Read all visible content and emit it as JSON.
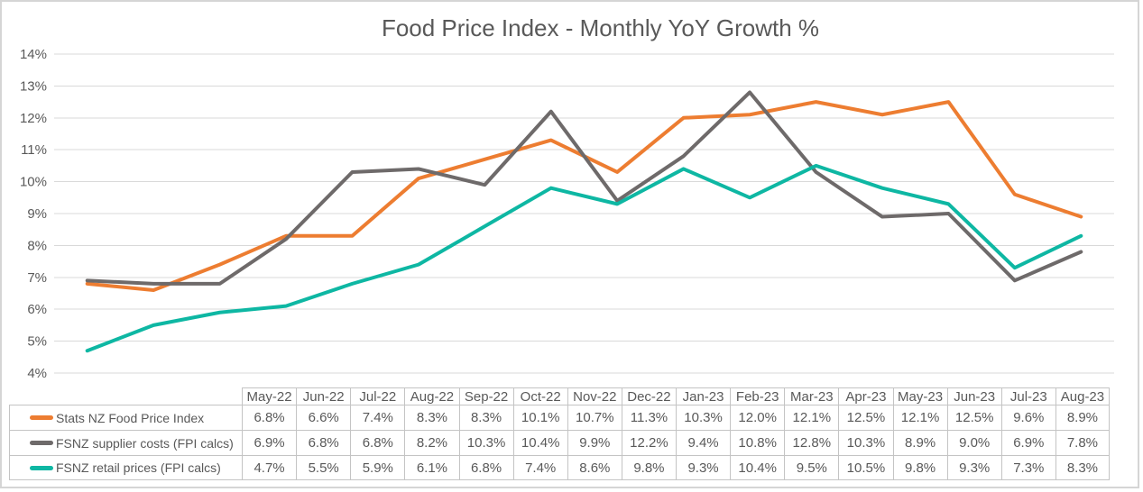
{
  "chart_data": {
    "type": "line",
    "title": "Food Price Index - Monthly YoY Growth %",
    "categories": [
      "May-22",
      "Jun-22",
      "Jul-22",
      "Aug-22",
      "Sep-22",
      "Oct-22",
      "Nov-22",
      "Dec-22",
      "Jan-23",
      "Feb-23",
      "Mar-23",
      "Apr-23",
      "May-23",
      "Jun-23",
      "Jul-23",
      "Aug-23"
    ],
    "series": [
      {
        "name": "Stats NZ Food Price Index",
        "color": "#ED7D31",
        "values": [
          6.8,
          6.6,
          7.4,
          8.3,
          8.3,
          10.1,
          10.7,
          11.3,
          10.3,
          12.0,
          12.1,
          12.5,
          12.1,
          12.5,
          9.6,
          8.9
        ],
        "display_values": [
          "6.8%",
          "6.6%",
          "7.4%",
          "8.3%",
          "8.3%",
          "10.1%",
          "10.7%",
          "11.3%",
          "10.3%",
          "12.0%",
          "12.1%",
          "12.5%",
          "12.1%",
          "12.5%",
          "9.6%",
          "8.9%"
        ]
      },
      {
        "name": "FSNZ supplier costs (FPI calcs)",
        "color": "#6E6A6A",
        "values": [
          6.9,
          6.8,
          6.8,
          8.2,
          10.3,
          10.4,
          9.9,
          12.2,
          9.4,
          10.8,
          12.8,
          10.3,
          8.9,
          9.0,
          6.9,
          7.8
        ],
        "display_values": [
          "6.9%",
          "6.8%",
          "6.8%",
          "8.2%",
          "10.3%",
          "10.4%",
          "9.9%",
          "12.2%",
          "9.4%",
          "10.8%",
          "12.8%",
          "10.3%",
          "8.9%",
          "9.0%",
          "6.9%",
          "7.8%"
        ]
      },
      {
        "name": "FSNZ retail prices (FPI calcs)",
        "color": "#0EB7A3",
        "values": [
          4.7,
          5.5,
          5.9,
          6.1,
          6.8,
          7.4,
          8.6,
          9.8,
          9.3,
          10.4,
          9.5,
          10.5,
          9.8,
          9.3,
          7.3,
          8.3
        ],
        "display_values": [
          "4.7%",
          "5.5%",
          "5.9%",
          "6.1%",
          "6.8%",
          "7.4%",
          "8.6%",
          "9.8%",
          "9.3%",
          "10.4%",
          "9.5%",
          "10.5%",
          "9.8%",
          "9.3%",
          "7.3%",
          "8.3%"
        ]
      }
    ],
    "ylim": [
      4,
      14
    ],
    "ytick_step": 1,
    "y_tick_labels": [
      "14%",
      "13%",
      "12%",
      "11%",
      "10%",
      "9%",
      "8%",
      "7%",
      "6%",
      "5%",
      "4%"
    ],
    "grid": true,
    "legend_position": "data-table",
    "colors": {
      "text": "#595959",
      "gridline": "#D9D9D9",
      "table_border": "#C4C4C4",
      "outer_border": "#D5D5D5",
      "background": "#FFFFFF"
    }
  }
}
